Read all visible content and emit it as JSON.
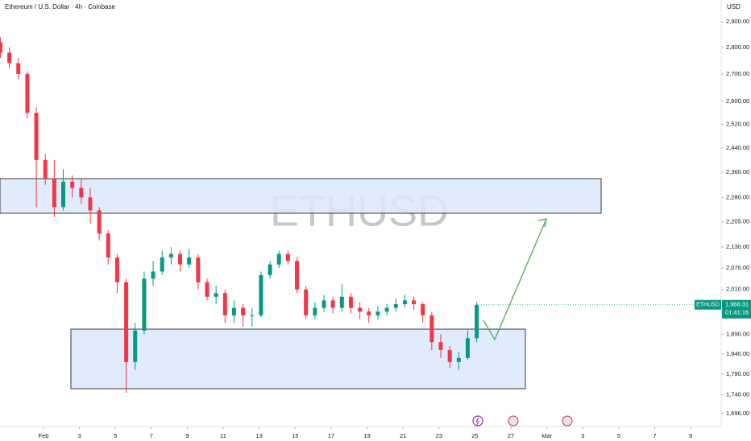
{
  "chart_data": {
    "type": "candlestick",
    "title": "Ethereum / U.S. Dollar · 4h · Coinbase",
    "currency": "USD",
    "watermark": "ETHUSD",
    "symbol": "ETHUSD",
    "countdown": "01:41:16",
    "last_price": {
      "value": 1968.31,
      "label": "1,968.31"
    },
    "log_scale": true,
    "up_color": "#089981",
    "down_color": "#f23645",
    "xlim": [
      -2.42,
      37.7
    ],
    "ylim": [
      1666,
      2988
    ],
    "xticks": [
      {
        "value": 0,
        "label": "Feb"
      },
      {
        "value": 2,
        "label": "3"
      },
      {
        "value": 4,
        "label": "5"
      },
      {
        "value": 6,
        "label": "7"
      },
      {
        "value": 8,
        "label": "9"
      },
      {
        "value": 10,
        "label": "11"
      },
      {
        "value": 12,
        "label": "13"
      },
      {
        "value": 14,
        "label": "15"
      },
      {
        "value": 16,
        "label": "17"
      },
      {
        "value": 18,
        "label": "19"
      },
      {
        "value": 20,
        "label": "21"
      },
      {
        "value": 22,
        "label": "23"
      },
      {
        "value": 24,
        "label": "25"
      },
      {
        "value": 26,
        "label": "27"
      },
      {
        "value": 28,
        "label": "Mar"
      },
      {
        "value": 30,
        "label": "3"
      },
      {
        "value": 32,
        "label": "5"
      },
      {
        "value": 34,
        "label": "7"
      },
      {
        "value": 36,
        "label": "9"
      }
    ],
    "yticks": [
      {
        "value": 2900,
        "label": "2,900.00"
      },
      {
        "value": 2800,
        "label": "2,800.00"
      },
      {
        "value": 2700,
        "label": "2,700.00"
      },
      {
        "value": 2600,
        "label": "2,600.00"
      },
      {
        "value": 2520,
        "label": "2,520.00"
      },
      {
        "value": 2440,
        "label": "2,440.00"
      },
      {
        "value": 2360,
        "label": "2,360.00"
      },
      {
        "value": 2280,
        "label": "2,280.00"
      },
      {
        "value": 2205,
        "label": "2,205.00"
      },
      {
        "value": 2130,
        "label": "2,130.00"
      },
      {
        "value": 2070,
        "label": "2,070.00"
      },
      {
        "value": 2010,
        "label": "2,010.00"
      },
      {
        "value": 1890,
        "label": "1,890.00"
      },
      {
        "value": 1840,
        "label": "1,840.00"
      },
      {
        "value": 1790,
        "label": "1,790.00"
      },
      {
        "value": 1740,
        "label": "1,740.00"
      },
      {
        "value": 1696,
        "label": "1,696.00"
      }
    ],
    "x": [
      -2.4,
      -1.9,
      -1.4,
      -0.9,
      -0.4,
      0.1,
      0.6,
      1.1,
      1.6,
      2.1,
      2.6,
      3.1,
      3.6,
      4.1,
      4.6,
      5.1,
      5.6,
      6.1,
      6.6,
      7.1,
      7.6,
      8.1,
      8.6,
      9.1,
      9.6,
      10.1,
      10.6,
      11.1,
      11.6,
      12.1,
      12.6,
      13.1,
      13.6,
      14.1,
      14.6,
      15.1,
      15.6,
      16.1,
      16.6,
      17.1,
      17.6,
      18.1,
      18.6,
      19.1,
      19.6,
      20.1,
      20.6,
      21.1,
      21.6,
      22.1,
      22.6,
      23.1,
      23.6,
      24.1
    ],
    "ohlc": [
      [
        2820,
        2840,
        2760,
        2780
      ],
      [
        2780,
        2800,
        2720,
        2740
      ],
      [
        2740,
        2760,
        2680,
        2700
      ],
      [
        2700,
        2710,
        2540,
        2560
      ],
      [
        2560,
        2580,
        2250,
        2400
      ],
      [
        2400,
        2420,
        2320,
        2340
      ],
      [
        2340,
        2400,
        2220,
        2250
      ],
      [
        2250,
        2370,
        2240,
        2330
      ],
      [
        2330,
        2350,
        2280,
        2310
      ],
      [
        2310,
        2340,
        2260,
        2280
      ],
      [
        2280,
        2310,
        2200,
        2240
      ],
      [
        2240,
        2250,
        2150,
        2170
      ],
      [
        2170,
        2180,
        2080,
        2100
      ],
      [
        2100,
        2110,
        2000,
        2030
      ],
      [
        2030,
        2040,
        1745,
        1820
      ],
      [
        1820,
        1920,
        1800,
        1900
      ],
      [
        1900,
        2060,
        1890,
        2040
      ],
      [
        2040,
        2090,
        2020,
        2060
      ],
      [
        2060,
        2120,
        2050,
        2100
      ],
      [
        2100,
        2130,
        2080,
        2110
      ],
      [
        2110,
        2120,
        2060,
        2080
      ],
      [
        2080,
        2125,
        2070,
        2100
      ],
      [
        2100,
        2110,
        2010,
        2030
      ],
      [
        2030,
        2040,
        1980,
        1990
      ],
      [
        1990,
        2020,
        1970,
        2000
      ],
      [
        2000,
        2010,
        1920,
        1940
      ],
      [
        1940,
        1980,
        1920,
        1960
      ],
      [
        1960,
        1970,
        1910,
        1940
      ],
      [
        1940,
        1960,
        1910,
        1940
      ],
      [
        1940,
        2060,
        1935,
        2050
      ],
      [
        2050,
        2090,
        2040,
        2080
      ],
      [
        2080,
        2120,
        2070,
        2110
      ],
      [
        2110,
        2120,
        2080,
        2090
      ],
      [
        2090,
        2100,
        2000,
        2010
      ],
      [
        2010,
        2020,
        1930,
        1940
      ],
      [
        1940,
        1975,
        1930,
        1960
      ],
      [
        1960,
        1995,
        1950,
        1980
      ],
      [
        1980,
        1990,
        1945,
        1960
      ],
      [
        1960,
        2025,
        1950,
        1990
      ],
      [
        1990,
        2000,
        1945,
        1960
      ],
      [
        1960,
        1975,
        1930,
        1950
      ],
      [
        1950,
        1960,
        1920,
        1940
      ],
      [
        1940,
        1965,
        1930,
        1950
      ],
      [
        1950,
        1970,
        1940,
        1960
      ],
      [
        1960,
        1985,
        1950,
        1970
      ],
      [
        1970,
        1995,
        1960,
        1980
      ],
      [
        1980,
        1990,
        1955,
        1970
      ],
      [
        1970,
        1975,
        1920,
        1940
      ],
      [
        1940,
        1950,
        1850,
        1870
      ],
      [
        1870,
        1890,
        1830,
        1850
      ],
      [
        1850,
        1860,
        1805,
        1820
      ],
      [
        1820,
        1845,
        1800,
        1830
      ],
      [
        1830,
        1900,
        1825,
        1880
      ],
      [
        1880,
        1975,
        1870,
        1968.31
      ]
    ]
  }
}
